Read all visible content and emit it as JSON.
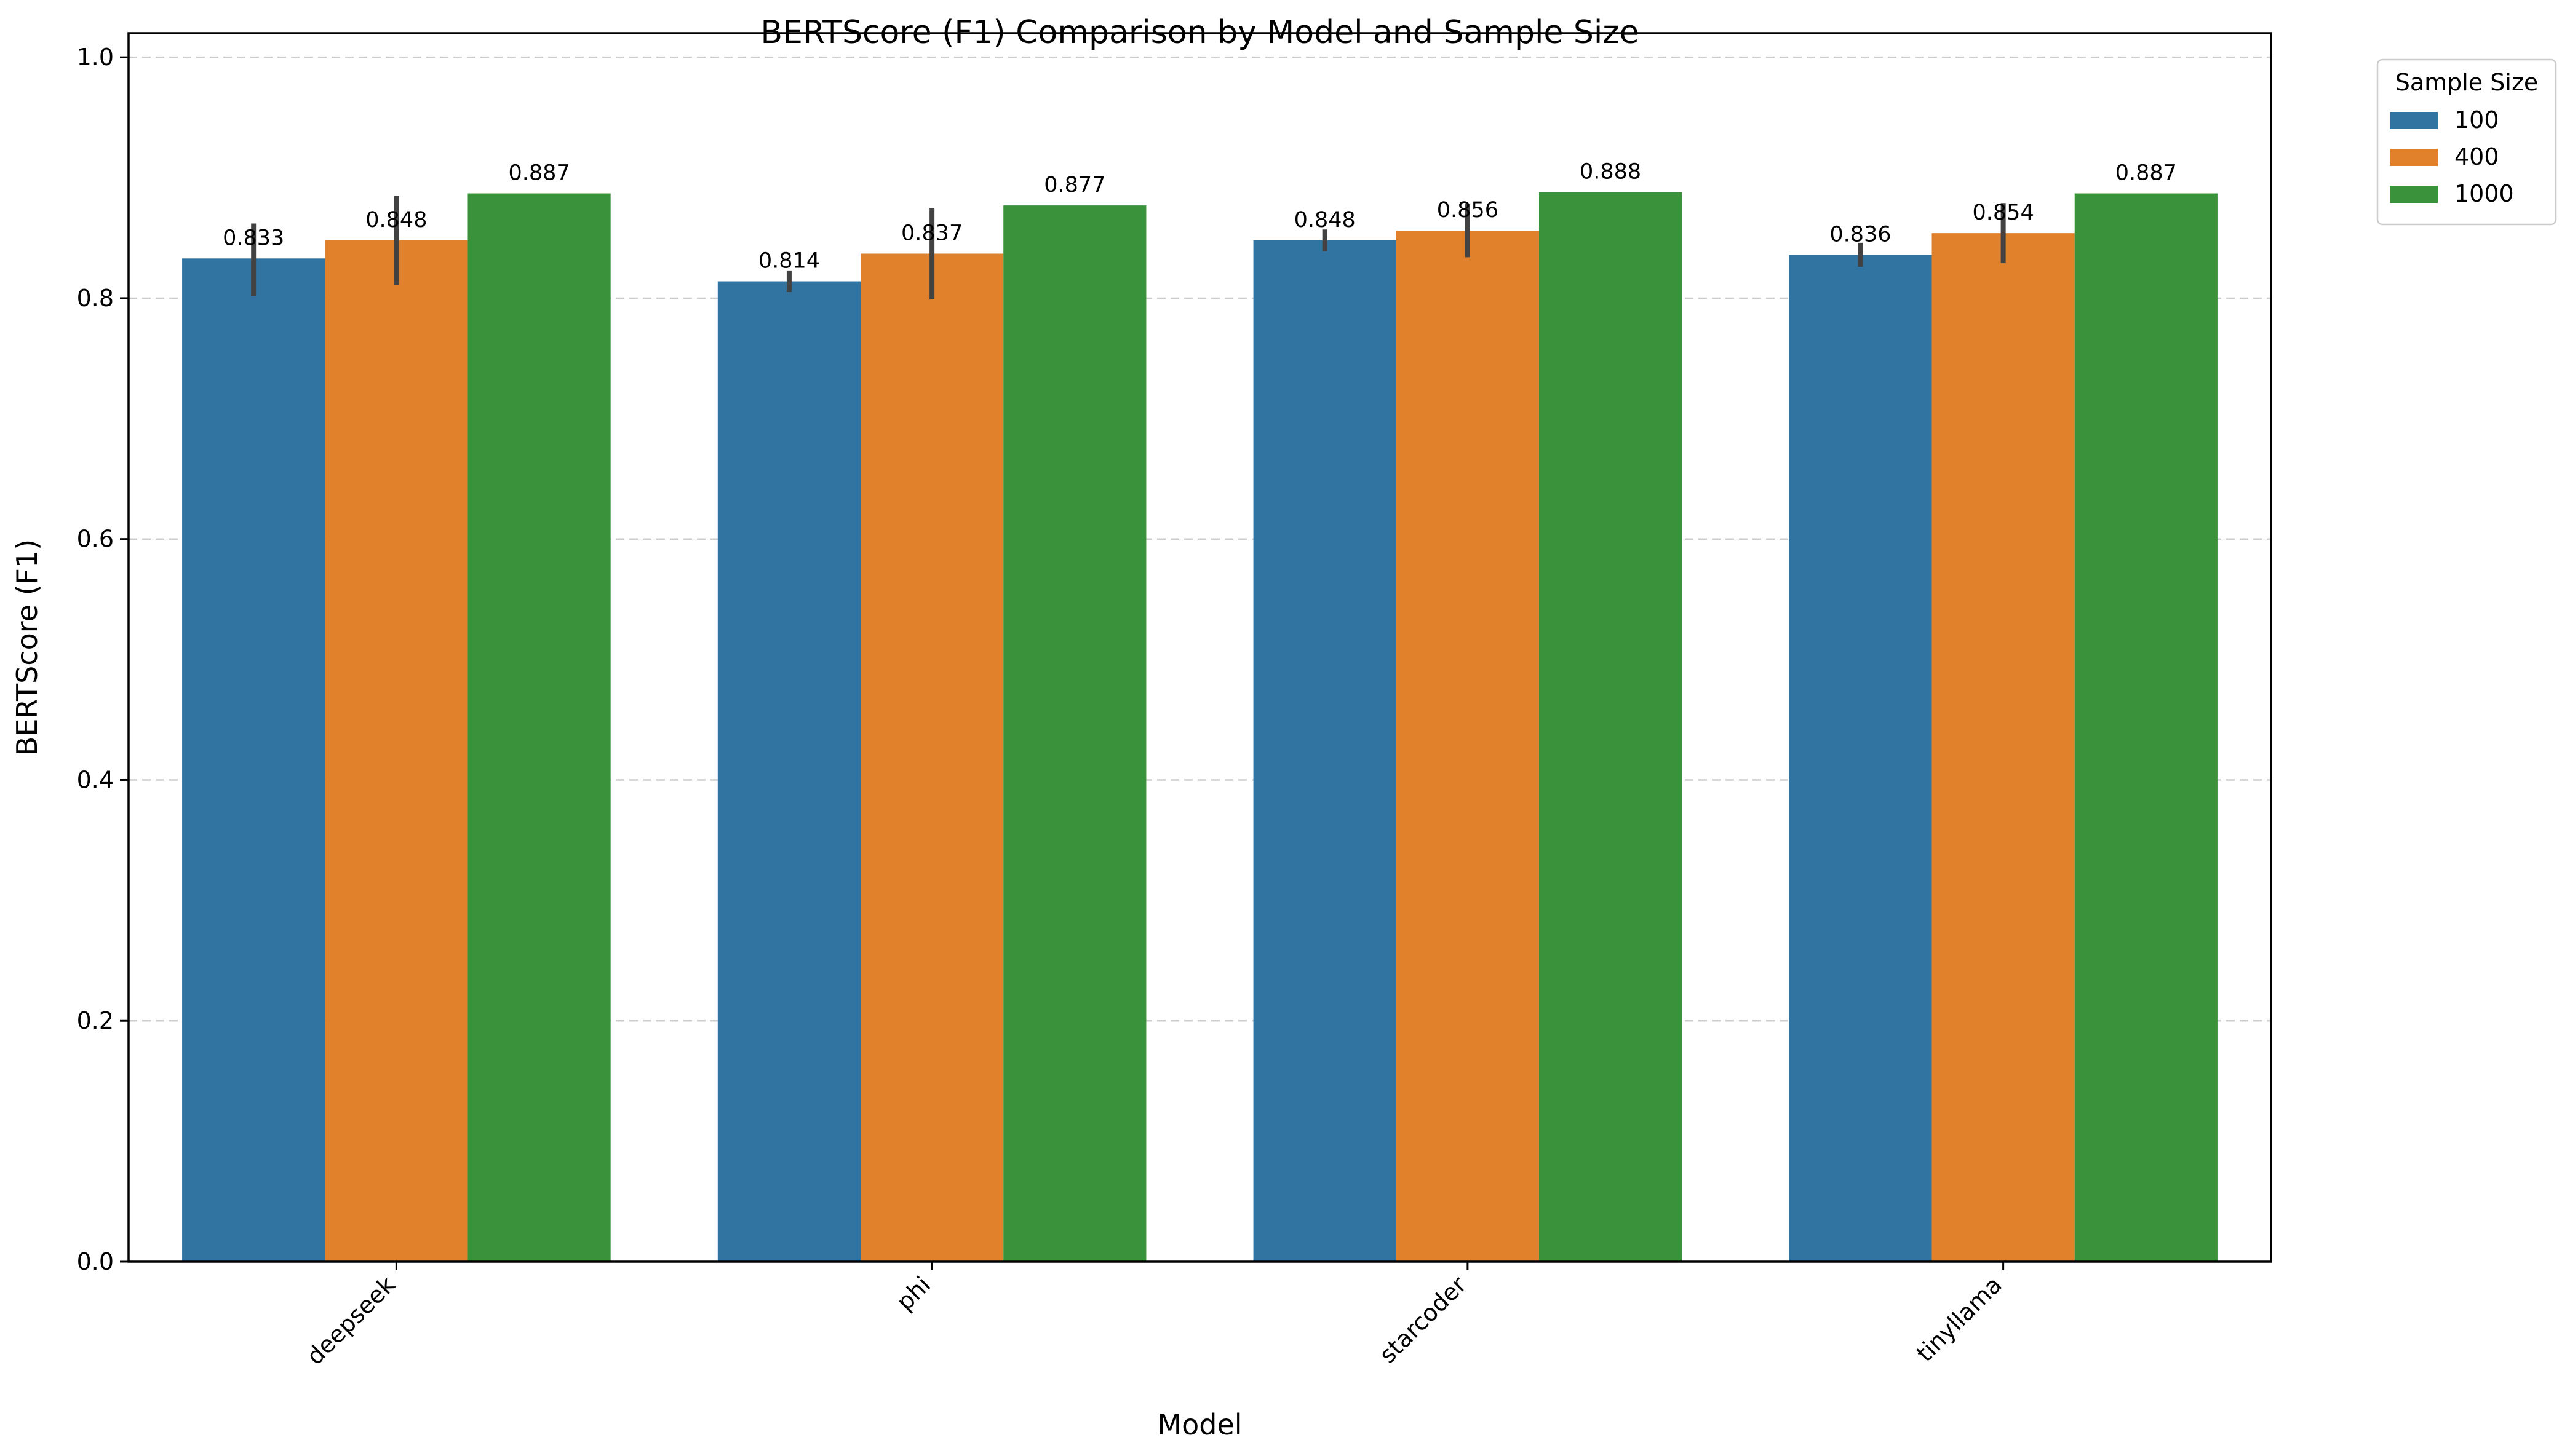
{
  "chart_data": {
    "type": "bar",
    "title": "BERTScore (F1) Comparison by Model and Sample Size",
    "xlabel": "Model",
    "ylabel": "BERTScore (F1)",
    "categories": [
      "deepseek",
      "phi",
      "starcoder",
      "tinyllama"
    ],
    "ylim": [
      0,
      1.02
    ],
    "yticks": [
      "0.0",
      "0.2",
      "0.4",
      "0.6",
      "0.8",
      "1.0"
    ],
    "grid": "horizontal dashed",
    "legend": {
      "title": "Sample Size",
      "placement": "outside top-right"
    },
    "series": [
      {
        "name": "100",
        "color": "#3274a1",
        "values": [
          0.833,
          0.814,
          0.848,
          0.836
        ],
        "labels": [
          "0.833",
          "0.814",
          "0.848",
          "0.836"
        ],
        "error": [
          [
            0.802,
            0.862
          ],
          [
            0.805,
            0.823
          ],
          [
            0.839,
            0.857
          ],
          [
            0.826,
            0.846
          ]
        ]
      },
      {
        "name": "400",
        "color": "#e1812c",
        "values": [
          0.848,
          0.837,
          0.856,
          0.854
        ],
        "labels": [
          "0.848",
          "0.837",
          "0.856",
          "0.854"
        ],
        "error": [
          [
            0.811,
            0.885
          ],
          [
            0.799,
            0.875
          ],
          [
            0.834,
            0.878
          ],
          [
            0.829,
            0.879
          ]
        ]
      },
      {
        "name": "1000",
        "color": "#3a923a",
        "values": [
          0.887,
          0.877,
          0.888,
          0.887
        ],
        "labels": [
          "0.887",
          "0.877",
          "0.888",
          "0.887"
        ],
        "error": null
      }
    ],
    "error_bar_color": "#424242"
  }
}
